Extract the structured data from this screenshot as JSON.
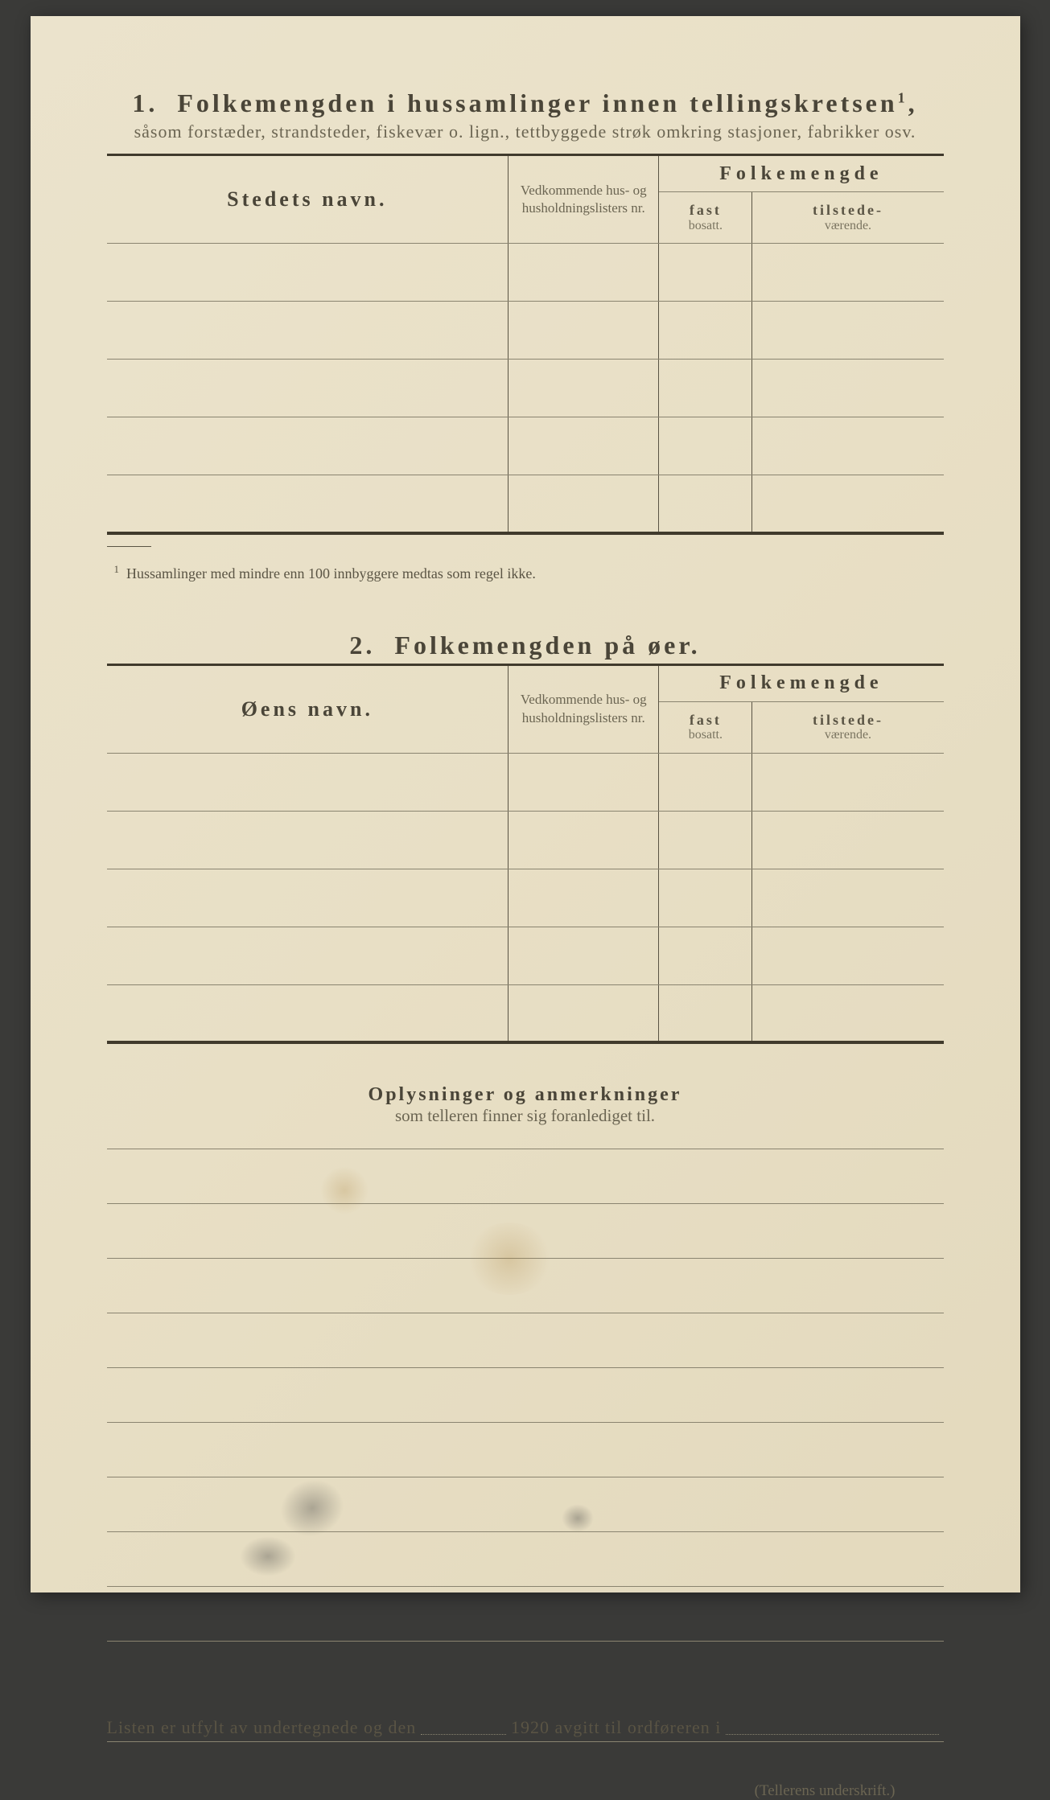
{
  "page": {
    "background_color": "#e8dfc5",
    "text_color": "#4a4538",
    "rule_color": "#5a5444",
    "light_rule_color": "#8a8470",
    "font_family": "serif"
  },
  "section1": {
    "number": "1.",
    "title": "Folkemengden i hussamlinger innen tellingskretsen",
    "title_sup": "1",
    "subtitle": "såsom forstæder, strandsteder, fiskevær o. lign., tettbyggede strøk omkring stasjoner, fabrikker osv.",
    "columns": {
      "name": "Stedets navn.",
      "list": "Vedkommende hus- og husholdningslisters nr.",
      "folke": "Folkemengde",
      "fast_main": "fast",
      "fast_sub": "bosatt.",
      "til_main": "tilstede-",
      "til_sub": "værende."
    },
    "rows": [
      {
        "name": "",
        "list": "",
        "fast": "",
        "til": ""
      },
      {
        "name": "",
        "list": "",
        "fast": "",
        "til": ""
      },
      {
        "name": "",
        "list": "",
        "fast": "",
        "til": ""
      },
      {
        "name": "",
        "list": "",
        "fast": "",
        "til": ""
      },
      {
        "name": "",
        "list": "",
        "fast": "",
        "til": ""
      }
    ],
    "footnote_sup": "1",
    "footnote": "Hussamlinger med mindre enn 100 innbyggere medtas som regel ikke."
  },
  "section2": {
    "number": "2.",
    "title": "Folkemengden på øer.",
    "columns": {
      "name": "Øens navn.",
      "list": "Vedkommende hus- og husholdningslisters nr.",
      "folke": "Folkemengde",
      "fast_main": "fast",
      "fast_sub": "bosatt.",
      "til_main": "tilstede-",
      "til_sub": "værende."
    },
    "rows": [
      {
        "name": "",
        "list": "",
        "fast": "",
        "til": ""
      },
      {
        "name": "",
        "list": "",
        "fast": "",
        "til": ""
      },
      {
        "name": "",
        "list": "",
        "fast": "",
        "til": ""
      },
      {
        "name": "",
        "list": "",
        "fast": "",
        "til": ""
      },
      {
        "name": "",
        "list": "",
        "fast": "",
        "til": ""
      }
    ]
  },
  "notes": {
    "title": "Oplysninger og anmerkninger",
    "subtitle": "som telleren finner sig foranlediget til.",
    "line_count": 9
  },
  "signature": {
    "prefix": "Listen er utfylt av undertegnede og den",
    "year": "1920",
    "mid": "avgitt til ordføreren i",
    "caption": "(Tellerens underskrift.)"
  }
}
